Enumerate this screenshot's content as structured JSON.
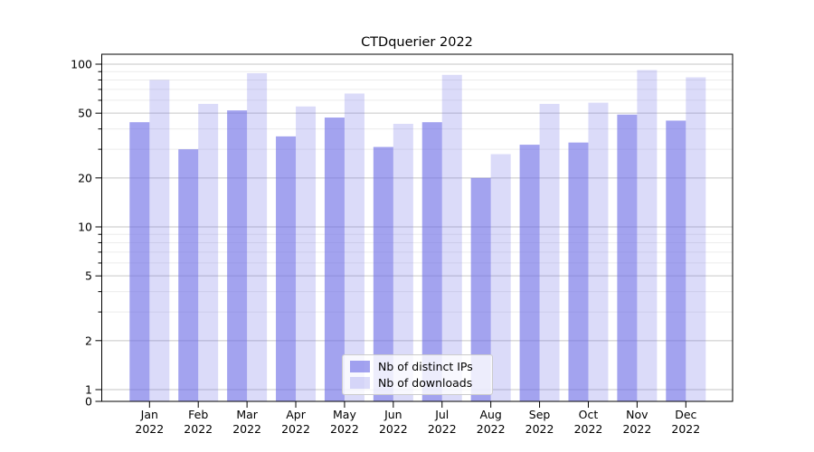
{
  "figure": {
    "title": "CTDquerier 2022"
  },
  "chart_data": {
    "type": "bar",
    "title": "CTDquerier 2022",
    "categories": [
      "Jan",
      "Feb",
      "Mar",
      "Apr",
      "May",
      "Jun",
      "Jul",
      "Aug",
      "Sep",
      "Oct",
      "Nov",
      "Dec"
    ],
    "category_year_line": "2022",
    "series": [
      {
        "name": "Nb of distinct IPs",
        "color": "rgba(106,106,229,0.62)",
        "values": [
          44,
          30,
          52,
          36,
          47,
          31,
          44,
          20,
          32,
          33,
          49,
          45
        ]
      },
      {
        "name": "Nb of downloads",
        "color": "rgba(106,106,229,0.24)",
        "values": [
          80,
          57,
          88,
          55,
          66,
          43,
          86,
          28,
          57,
          58,
          92,
          83
        ]
      }
    ],
    "xlabel": "",
    "ylabel": "",
    "yscale": "symlog",
    "ylim": [
      0,
      115
    ],
    "y_major_ticks": [
      100,
      50,
      20,
      10,
      5,
      2,
      1,
      0
    ],
    "y_minor_ticks": [
      90,
      80,
      70,
      60,
      40,
      30,
      9,
      8,
      7,
      6,
      4,
      3
    ],
    "grid": true,
    "legend_position": "lower center",
    "colors": {
      "major_gridline": "#c6c6c6",
      "minor_gridline": "#ececec",
      "axis": "#000000",
      "text": "#000000",
      "background": "#ffffff"
    }
  }
}
